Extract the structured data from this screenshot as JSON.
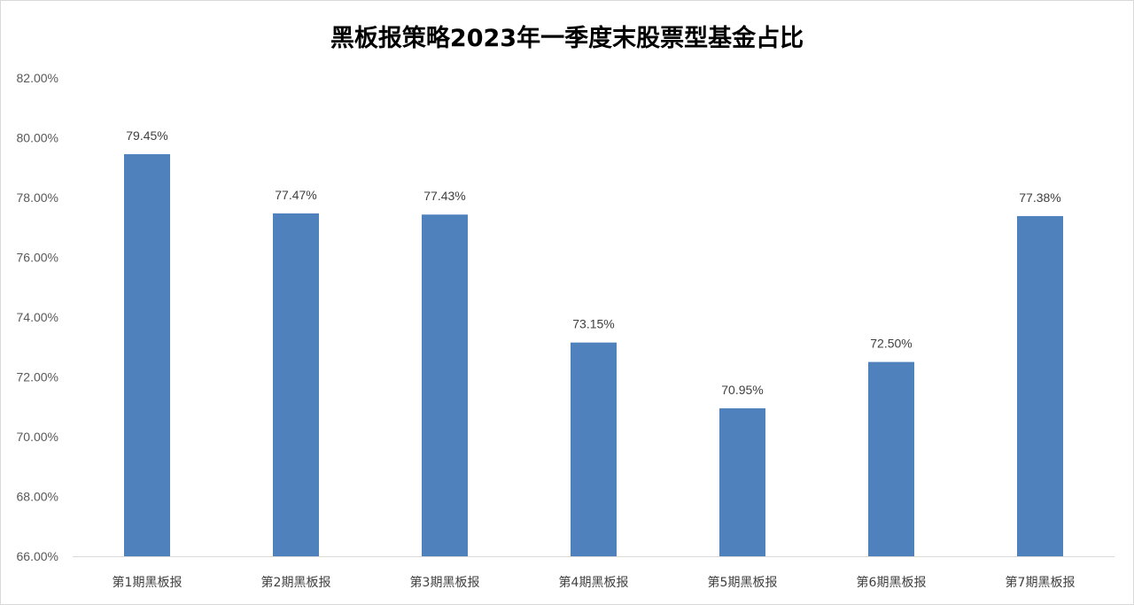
{
  "chart_data": {
    "type": "bar",
    "title": "黑板报策略2023年一季度末股票型基金占比",
    "categories": [
      "第1期黑板报",
      "第2期黑板报",
      "第3期黑板报",
      "第4期黑板报",
      "第5期黑板报",
      "第6期黑板报",
      "第7期黑板报"
    ],
    "values": [
      79.45,
      77.47,
      77.43,
      73.15,
      70.95,
      72.5,
      77.38
    ],
    "data_labels": [
      "79.45%",
      "77.47%",
      "77.43%",
      "73.15%",
      "70.95%",
      "72.50%",
      "77.38%"
    ],
    "yticks": [
      "66.00%",
      "68.00%",
      "70.00%",
      "72.00%",
      "74.00%",
      "76.00%",
      "78.00%",
      "80.00%",
      "82.00%"
    ],
    "ylim": [
      66,
      82
    ],
    "xlabel": "",
    "ylabel": "",
    "grid": false,
    "bar_color": "#4f81bd"
  }
}
